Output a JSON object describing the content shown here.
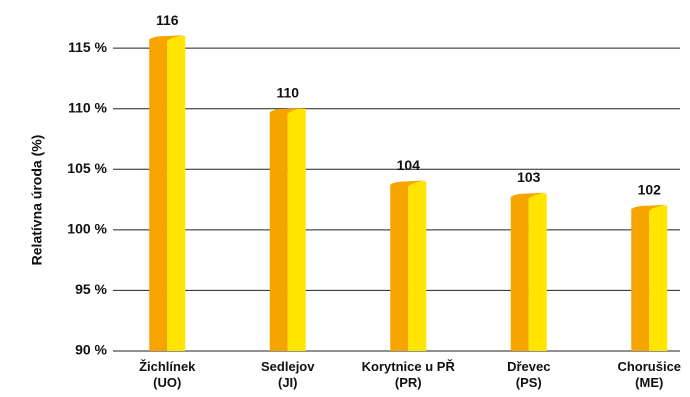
{
  "chart_data": {
    "type": "bar",
    "y_label": "Relatívna úroda (%)",
    "categories": [
      "Žichlínek\n(UO)",
      "Sedlejov\n(JI)",
      "Korytnice u PŘ\n(PR)",
      "Dřevec\n(PS)",
      "Chorušice\n(ME)"
    ],
    "values": [
      116,
      110,
      104,
      103,
      102
    ],
    "color": "#ffe500",
    "shade_color": "#f6a500",
    "ylim": [
      90,
      116.5
    ],
    "yticks": [
      {
        "value": 90,
        "label": "90 %"
      },
      {
        "value": 95,
        "label": "95 %"
      },
      {
        "value": 100,
        "label": "100 %"
      },
      {
        "value": 105,
        "label": "105 %"
      },
      {
        "value": 110,
        "label": "110 %"
      },
      {
        "value": 115,
        "label": "115 %"
      }
    ],
    "grid": true
  }
}
